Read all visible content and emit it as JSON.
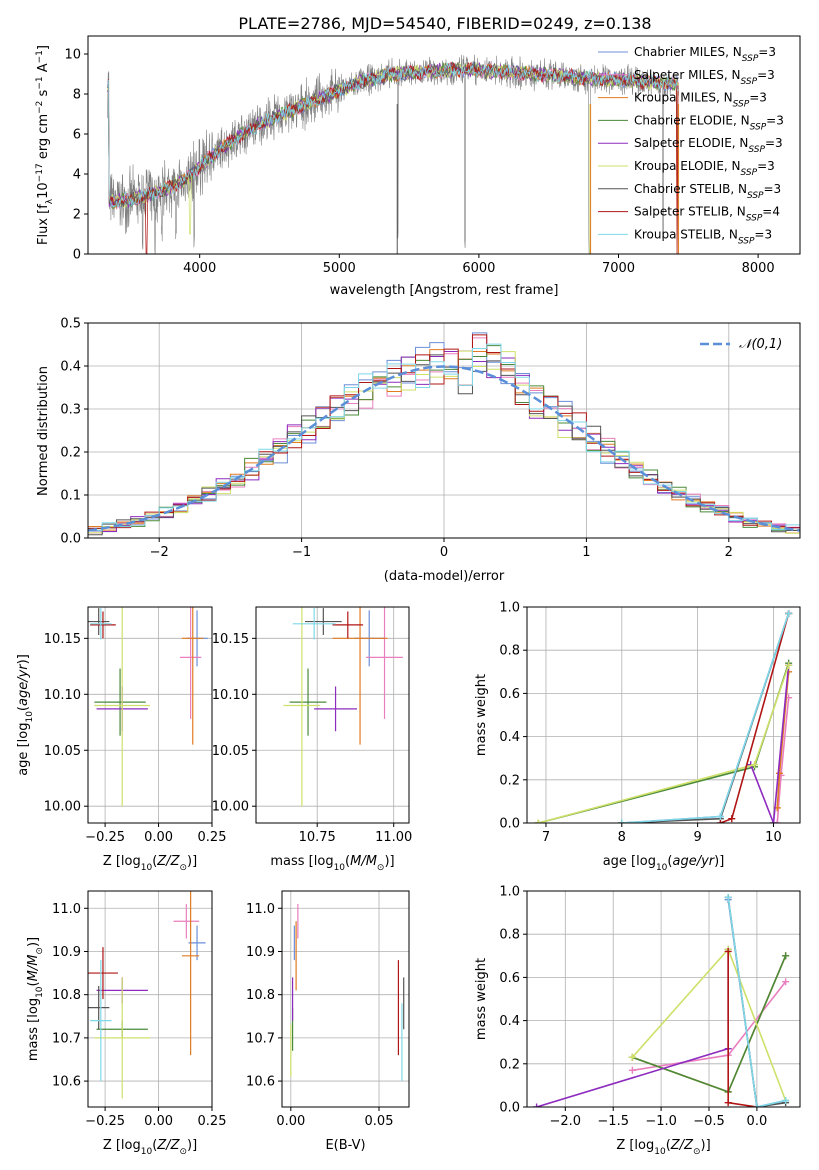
{
  "figure": {
    "title": "PLATE=2786, MJD=54540, FIBERID=0249, z=0.138"
  },
  "colors": {
    "chabrier_miles": "#6b8fd8",
    "salpeter_miles": "#e97fbf",
    "kroupa_miles": "#e07b21",
    "chabrier_elodie": "#4a8a3a",
    "salpeter_elodie": "#8e2bbf",
    "kroupa_elodie": "#cfe06a",
    "chabrier_stelib": "#555555",
    "salpeter_stelib": "#b01515",
    "kroupa_stelib": "#7fd8e8",
    "data_gray": "#808080",
    "gaussian": "#5b8fd8"
  },
  "chart_data": [
    {
      "id": "spectrum",
      "type": "line",
      "title": "PLATE=2786, MJD=54540, FIBERID=0249, z=0.138",
      "xlabel": "wavelength [Angstrom, rest frame]",
      "ylabel": "Flux [f_λ 10^-17 erg cm^-2 s^-1 A^-1]",
      "xlim": [
        3200,
        8300
      ],
      "ylim": [
        0,
        10.9
      ],
      "xticks": [
        4000,
        5000,
        6000,
        7000,
        8000
      ],
      "yticks": [
        0,
        2,
        4,
        6,
        8,
        10
      ],
      "legend_position": "top-right",
      "legend": [
        {
          "label": "Chabrier MILES, N_SSP=3",
          "color": "#6b8fd8"
        },
        {
          "label": "Salpeter MILES, N_SSP=3",
          "color": "#e97fbf"
        },
        {
          "label": "Kroupa MILES, N_SSP=3",
          "color": "#e07b21"
        },
        {
          "label": "Chabrier ELODIE, N_SSP=3",
          "color": "#4a8a3a"
        },
        {
          "label": "Salpeter ELODIE, N_SSP=3",
          "color": "#8e2bbf"
        },
        {
          "label": "Kroupa ELODIE, N_SSP=3",
          "color": "#cfe06a"
        },
        {
          "label": "Chabrier STELIB, N_SSP=3",
          "color": "#555555"
        },
        {
          "label": "Salpeter STELIB, N_SSP=4",
          "color": "#b01515"
        },
        {
          "label": "Kroupa STELIB, N_SSP=3",
          "color": "#7fd8e8"
        }
      ],
      "continuum": [
        [
          3350,
          2.6
        ],
        [
          3500,
          2.7
        ],
        [
          3700,
          3.1
        ],
        [
          3900,
          3.7
        ],
        [
          4000,
          4.4
        ],
        [
          4200,
          5.5
        ],
        [
          4400,
          6.4
        ],
        [
          4600,
          7.0
        ],
        [
          4800,
          7.6
        ],
        [
          5000,
          8.2
        ],
        [
          5200,
          8.7
        ],
        [
          5400,
          9.0
        ],
        [
          5600,
          9.1
        ],
        [
          5800,
          9.2
        ],
        [
          6000,
          9.2
        ],
        [
          6200,
          9.1
        ],
        [
          6400,
          9.0
        ],
        [
          6600,
          8.9
        ],
        [
          6800,
          8.8
        ],
        [
          7000,
          8.7
        ],
        [
          7200,
          8.6
        ],
        [
          7400,
          8.5
        ]
      ],
      "deep_drops": [
        3590,
        3680,
        3730,
        3830,
        3960,
        5420,
        5900,
        6790,
        7320,
        7420
      ]
    },
    {
      "id": "residuals",
      "type": "bar",
      "xlabel": "(data-model)/error",
      "ylabel": "Normed distribution",
      "xlim": [
        -2.5,
        2.5
      ],
      "ylim": [
        0,
        0.5
      ],
      "xticks": [
        -2,
        -1,
        0,
        1,
        2
      ],
      "yticks": [
        0.0,
        0.1,
        0.2,
        0.3,
        0.4,
        0.5
      ],
      "legend_position": "top-right",
      "legend": [
        {
          "label": "𝒩(0,1)",
          "color": "#5b8fd8",
          "style": "dashed"
        }
      ],
      "bin_width": 0.1
    },
    {
      "id": "age_vs_Z",
      "type": "scatter",
      "xlabel": "Z [log10(Z/Z⊙)]",
      "ylabel": "age  [log10(age/yr)]",
      "xlim": [
        -0.33,
        0.25
      ],
      "ylim": [
        9.985,
        10.178
      ],
      "xticks": [
        -0.25,
        0.0,
        0.25
      ],
      "yticks": [
        10.0,
        10.05,
        10.1,
        10.15
      ],
      "points": [
        {
          "model": "Chabrier MILES",
          "x": 0.18,
          "y": 10.15,
          "xerr": 0.05,
          "yerr": 0.025,
          "color": "#6b8fd8"
        },
        {
          "model": "Salpeter MILES",
          "x": 0.15,
          "y": 10.133,
          "xerr": 0.05,
          "yerr": 0.055,
          "color": "#e97fbf"
        },
        {
          "model": "Kroupa MILES",
          "x": 0.16,
          "y": 10.15,
          "xerr": 0.05,
          "yerr": 0.095,
          "color": "#e07b21"
        },
        {
          "model": "Chabrier ELODIE",
          "x": -0.18,
          "y": 10.093,
          "xerr": 0.12,
          "yerr": 0.03,
          "color": "#4a8a3a"
        },
        {
          "model": "Salpeter ELODIE",
          "x": -0.17,
          "y": 10.087,
          "xerr": 0.12,
          "yerr": 0.02,
          "color": "#8e2bbf"
        },
        {
          "model": "Kroupa ELODIE",
          "x": -0.17,
          "y": 10.09,
          "xerr": 0.13,
          "yerr": 0.09,
          "color": "#cfe06a"
        },
        {
          "model": "Chabrier STELIB",
          "x": -0.28,
          "y": 10.165,
          "xerr": 0.05,
          "yerr": 0.012,
          "color": "#555555"
        },
        {
          "model": "Salpeter STELIB",
          "x": -0.26,
          "y": 10.162,
          "xerr": 0.06,
          "yerr": 0.012,
          "color": "#b01515"
        },
        {
          "model": "Kroupa STELIB",
          "x": -0.27,
          "y": 10.163,
          "xerr": 0.05,
          "yerr": 0.014,
          "color": "#7fd8e8"
        }
      ]
    },
    {
      "id": "age_vs_mass",
      "type": "scatter",
      "xlabel": "mass [log10(M/M⊙)]",
      "ylabel": "",
      "xlim": [
        10.55,
        11.05
      ],
      "ylim": [
        9.985,
        10.178
      ],
      "xticks": [
        10.75,
        11.0
      ],
      "yticks": [
        10.0,
        10.05,
        10.1,
        10.15
      ],
      "points": [
        {
          "model": "Chabrier MILES",
          "x": 10.92,
          "y": 10.15,
          "xerr": 0.05,
          "yerr": 0.025,
          "color": "#6b8fd8"
        },
        {
          "model": "Salpeter MILES",
          "x": 10.97,
          "y": 10.133,
          "xerr": 0.06,
          "yerr": 0.055,
          "color": "#e97fbf"
        },
        {
          "model": "Kroupa MILES",
          "x": 10.89,
          "y": 10.15,
          "xerr": 0.09,
          "yerr": 0.095,
          "color": "#e07b21"
        },
        {
          "model": "Chabrier ELODIE",
          "x": 10.72,
          "y": 10.093,
          "xerr": 0.06,
          "yerr": 0.03,
          "color": "#4a8a3a"
        },
        {
          "model": "Salpeter ELODIE",
          "x": 10.81,
          "y": 10.087,
          "xerr": 0.07,
          "yerr": 0.02,
          "color": "#8e2bbf"
        },
        {
          "model": "Kroupa ELODIE",
          "x": 10.7,
          "y": 10.09,
          "xerr": 0.06,
          "yerr": 0.09,
          "color": "#cfe06a"
        },
        {
          "model": "Chabrier STELIB",
          "x": 10.77,
          "y": 10.165,
          "xerr": 0.06,
          "yerr": 0.012,
          "color": "#555555"
        },
        {
          "model": "Salpeter STELIB",
          "x": 10.85,
          "y": 10.162,
          "xerr": 0.05,
          "yerr": 0.012,
          "color": "#b01515"
        },
        {
          "model": "Kroupa STELIB",
          "x": 10.74,
          "y": 10.163,
          "xerr": 0.07,
          "yerr": 0.014,
          "color": "#7fd8e8"
        }
      ]
    },
    {
      "id": "weight_vs_age",
      "type": "line",
      "xlabel": "age  [log10(age/yr)]",
      "ylabel": "mass weight",
      "xlim": [
        6.75,
        10.35
      ],
      "ylim": [
        0,
        1.0
      ],
      "xticks": [
        7,
        8,
        9,
        10
      ],
      "yticks": [
        0.0,
        0.2,
        0.4,
        0.6,
        0.8,
        1.0
      ],
      "series": [
        {
          "name": "Chabrier MILES",
          "color": "#6b8fd8",
          "x": [
            8.0,
            9.3,
            10.2
          ],
          "y": [
            0.0,
            0.03,
            0.97
          ]
        },
        {
          "name": "Salpeter MILES",
          "color": "#e97fbf",
          "x": [
            10.05,
            10.1,
            10.2
          ],
          "y": [
            0.0,
            0.22,
            0.58
          ]
        },
        {
          "name": "Kroupa MILES",
          "color": "#e07b21",
          "x": [
            10.05,
            10.08,
            10.2
          ],
          "y": [
            0.07,
            0.23,
            0.7
          ]
        },
        {
          "name": "Chabrier ELODIE",
          "color": "#4a8a3a",
          "x": [
            6.9,
            9.75,
            10.2
          ],
          "y": [
            0.0,
            0.26,
            0.74
          ]
        },
        {
          "name": "Salpeter ELODIE",
          "color": "#8e2bbf",
          "x": [
            9.7,
            10.0,
            10.2
          ],
          "y": [
            0.27,
            0.0,
            0.73
          ]
        },
        {
          "name": "Kroupa ELODIE",
          "color": "#cfe06a",
          "x": [
            6.9,
            9.75,
            10.2
          ],
          "y": [
            0.0,
            0.27,
            0.73
          ]
        },
        {
          "name": "Chabrier STELIB",
          "color": "#555555",
          "x": [
            8.0,
            9.3,
            10.2
          ],
          "y": [
            0.0,
            0.02,
            0.97
          ]
        },
        {
          "name": "Salpeter STELIB",
          "color": "#b01515",
          "x": [
            9.3,
            9.45,
            10.2
          ],
          "y": [
            0.0,
            0.02,
            0.97
          ]
        },
        {
          "name": "Kroupa STELIB",
          "color": "#7fd8e8",
          "x": [
            8.0,
            9.3,
            10.2
          ],
          "y": [
            0.0,
            0.03,
            0.97
          ]
        }
      ]
    },
    {
      "id": "mass_vs_Z",
      "type": "scatter",
      "xlabel": "Z [log10(Z/Z⊙)]",
      "ylabel": "mass [log10(M/M⊙)]",
      "xlim": [
        -0.33,
        0.25
      ],
      "ylim": [
        10.54,
        11.04
      ],
      "xticks": [
        -0.25,
        0.0,
        0.25
      ],
      "yticks": [
        10.6,
        10.7,
        10.8,
        10.9,
        11.0
      ],
      "points": [
        {
          "model": "Chabrier MILES",
          "x": 0.18,
          "y": 10.92,
          "xerr": 0.04,
          "yerr": 0.04,
          "color": "#6b8fd8"
        },
        {
          "model": "Salpeter MILES",
          "x": 0.13,
          "y": 10.97,
          "xerr": 0.06,
          "yerr": 0.04,
          "color": "#e97fbf"
        },
        {
          "model": "Kroupa MILES",
          "x": 0.15,
          "y": 10.89,
          "xerr": 0.04,
          "yerr": 0.23,
          "color": "#e07b21"
        },
        {
          "model": "Chabrier ELODIE",
          "x": -0.17,
          "y": 10.72,
          "xerr": 0.12,
          "yerr": 0.02,
          "color": "#4a8a3a"
        },
        {
          "model": "Salpeter ELODIE",
          "x": -0.17,
          "y": 10.81,
          "xerr": 0.12,
          "yerr": 0.03,
          "color": "#8e2bbf"
        },
        {
          "model": "Kroupa ELODIE",
          "x": -0.17,
          "y": 10.7,
          "xerr": 0.13,
          "yerr": 0.14,
          "color": "#cfe06a"
        },
        {
          "model": "Chabrier STELIB",
          "x": -0.28,
          "y": 10.77,
          "xerr": 0.05,
          "yerr": 0.05,
          "color": "#555555"
        },
        {
          "model": "Salpeter STELIB",
          "x": -0.26,
          "y": 10.85,
          "xerr": 0.07,
          "yerr": 0.06,
          "color": "#b01515"
        },
        {
          "model": "Kroupa STELIB",
          "x": -0.27,
          "y": 10.74,
          "xerr": 0.05,
          "yerr": 0.14,
          "color": "#7fd8e8"
        }
      ]
    },
    {
      "id": "mass_vs_ebv",
      "type": "scatter",
      "xlabel": "E(B-V)",
      "ylabel": "",
      "xlim": [
        -0.005,
        0.067
      ],
      "ylim": [
        10.54,
        11.04
      ],
      "xticks": [
        0.0,
        0.05
      ],
      "yticks": [
        10.6,
        10.7,
        10.8,
        10.9,
        11.0
      ],
      "points": [
        {
          "model": "Chabrier MILES",
          "x": 0.002,
          "y": 10.92,
          "yerr": 0.04,
          "color": "#6b8fd8"
        },
        {
          "model": "Salpeter MILES",
          "x": 0.004,
          "y": 10.97,
          "yerr": 0.04,
          "color": "#e97fbf"
        },
        {
          "model": "Kroupa MILES",
          "x": 0.003,
          "y": 10.89,
          "yerr": 0.08,
          "color": "#e07b21"
        },
        {
          "model": "Chabrier ELODIE",
          "x": 0.001,
          "y": 10.72,
          "yerr": 0.05,
          "color": "#4a8a3a"
        },
        {
          "model": "Salpeter ELODIE",
          "x": 0.001,
          "y": 10.79,
          "yerr": 0.05,
          "color": "#8e2bbf"
        },
        {
          "model": "Kroupa ELODIE",
          "x": 0.0,
          "y": 10.67,
          "yerr": 0.06,
          "color": "#cfe06a"
        },
        {
          "model": "Chabrier STELIB",
          "x": 0.064,
          "y": 10.78,
          "yerr": 0.06,
          "color": "#555555"
        },
        {
          "model": "Salpeter STELIB",
          "x": 0.061,
          "y": 10.77,
          "yerr": 0.11,
          "color": "#b01515"
        },
        {
          "model": "Kroupa STELIB",
          "x": 0.063,
          "y": 10.69,
          "yerr": 0.09,
          "color": "#7fd8e8"
        }
      ]
    },
    {
      "id": "weight_vs_Z",
      "type": "line",
      "xlabel": "Z [log10(Z/Z⊙)]",
      "ylabel": "mass weight",
      "xlim": [
        -2.4,
        0.45
      ],
      "ylim": [
        0,
        1.0
      ],
      "xticks": [
        -2.0,
        -1.5,
        -1.0,
        -0.5,
        0.0
      ],
      "yticks": [
        0.0,
        0.2,
        0.4,
        0.6,
        0.8,
        1.0
      ],
      "series": [
        {
          "name": "Chabrier MILES",
          "color": "#6b8fd8",
          "x": [
            -0.3,
            0.0,
            0.3
          ],
          "y": [
            0.96,
            0.0,
            0.03
          ]
        },
        {
          "name": "Salpeter MILES",
          "color": "#e97fbf",
          "x": [
            -1.3,
            -0.3,
            0.3
          ],
          "y": [
            0.17,
            0.24,
            0.58
          ]
        },
        {
          "name": "Kroupa MILES",
          "color": "#e07b21",
          "x": [
            -1.3,
            -0.3,
            0.3
          ],
          "y": [
            0.23,
            0.07,
            0.7
          ]
        },
        {
          "name": "Chabrier ELODIE",
          "color": "#4a8a3a",
          "x": [
            -1.3,
            -0.3,
            0.3
          ],
          "y": [
            0.23,
            0.07,
            0.7
          ]
        },
        {
          "name": "Salpeter ELODIE",
          "color": "#8e2bbf",
          "x": [
            -2.3,
            -0.3,
            -0.3
          ],
          "y": [
            0.0,
            0.27,
            0.73
          ]
        },
        {
          "name": "Kroupa ELODIE",
          "color": "#cfe06a",
          "x": [
            -1.3,
            -0.3,
            0.3
          ],
          "y": [
            0.23,
            0.73,
            0.03
          ]
        },
        {
          "name": "Chabrier STELIB",
          "color": "#555555",
          "x": [
            -0.3,
            0.0,
            0.3
          ],
          "y": [
            0.97,
            0.0,
            0.02
          ]
        },
        {
          "name": "Salpeter STELIB",
          "color": "#b01515",
          "x": [
            -0.3,
            -0.3,
            0.0
          ],
          "y": [
            0.72,
            0.02,
            0.0
          ]
        },
        {
          "name": "Kroupa STELIB",
          "color": "#7fd8e8",
          "x": [
            -0.3,
            0.0,
            0.3
          ],
          "y": [
            0.97,
            0.0,
            0.03
          ]
        }
      ]
    }
  ]
}
